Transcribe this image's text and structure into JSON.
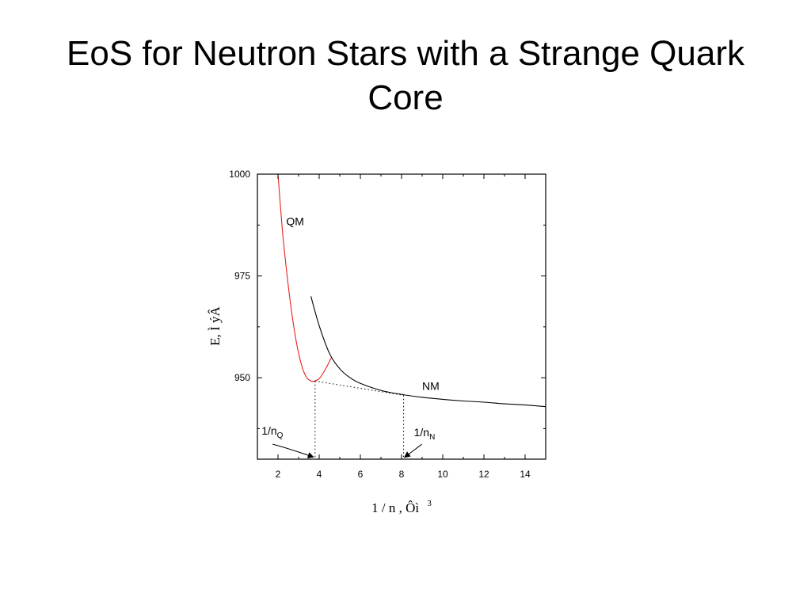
{
  "slide": {
    "title_line1": "EoS for Neutron Stars with a Strange Quark",
    "title_line2": "Core"
  },
  "chart_data": {
    "type": "line",
    "xlabel": "1 / n , Ôì",
    "xlabel_sup": "3",
    "ylabel": "E,  Ì  ýÂ",
    "xlim": [
      1,
      15
    ],
    "ylim": [
      930,
      1000
    ],
    "x_ticks": [
      2,
      4,
      6,
      8,
      10,
      12,
      14
    ],
    "x_tick_labels": [
      "2",
      "4",
      "6",
      "8",
      "10",
      "12",
      "14"
    ],
    "y_ticks": [
      950,
      975,
      1000
    ],
    "y_tick_labels": [
      "950",
      "975",
      "1000"
    ],
    "grid": false,
    "series": [
      {
        "name": "QM",
        "color": "#e8231e",
        "style": "solid",
        "x": [
          2.0,
          2.2,
          2.4,
          2.6,
          2.8,
          3.0,
          3.2,
          3.4,
          3.6,
          3.8,
          4.0,
          4.2,
          4.4,
          4.6
        ],
        "y": [
          1000.0,
          987.0,
          977.0,
          968.5,
          961.5,
          956.0,
          952.2,
          950.0,
          949.2,
          949.2,
          949.8,
          951.2,
          953.0,
          955.0
        ]
      },
      {
        "name": "NM",
        "color": "#000000",
        "style": "solid",
        "x": [
          3.6,
          4.0,
          4.5,
          5.0,
          5.5,
          6.0,
          7.0,
          8.0,
          9.0,
          10.0,
          11.0,
          12.0,
          13.0,
          14.0,
          15.0
        ],
        "y": [
          970.0,
          962.8,
          956.0,
          952.2,
          950.0,
          948.6,
          946.9,
          945.9,
          945.2,
          944.7,
          944.3,
          944.0,
          943.6,
          943.3,
          942.9
        ]
      },
      {
        "name": "tangent",
        "color": "#000000",
        "style": "dotted",
        "x": [
          3.8,
          8.1
        ],
        "y": [
          949.2,
          945.7
        ]
      },
      {
        "name": "1/nQ-drop",
        "color": "#000000",
        "style": "dotted",
        "x": [
          3.8,
          3.8
        ],
        "y": [
          949.2,
          930
        ]
      },
      {
        "name": "1/nN-drop",
        "color": "#000000",
        "style": "dotted",
        "x": [
          8.1,
          8.1
        ],
        "y": [
          945.7,
          930
        ]
      }
    ],
    "annotations": [
      {
        "id": "qm",
        "text": "QM",
        "x": 2.4,
        "y": 987.5
      },
      {
        "id": "nm",
        "text": "NM",
        "x": 9.0,
        "y": 947.0
      },
      {
        "id": "nq",
        "text": "1/n",
        "sub": "Q",
        "x": 1.2,
        "y": 936.0
      },
      {
        "id": "nn",
        "text": "1/n",
        "sub": "N",
        "x": 8.6,
        "y": 935.6
      }
    ]
  }
}
